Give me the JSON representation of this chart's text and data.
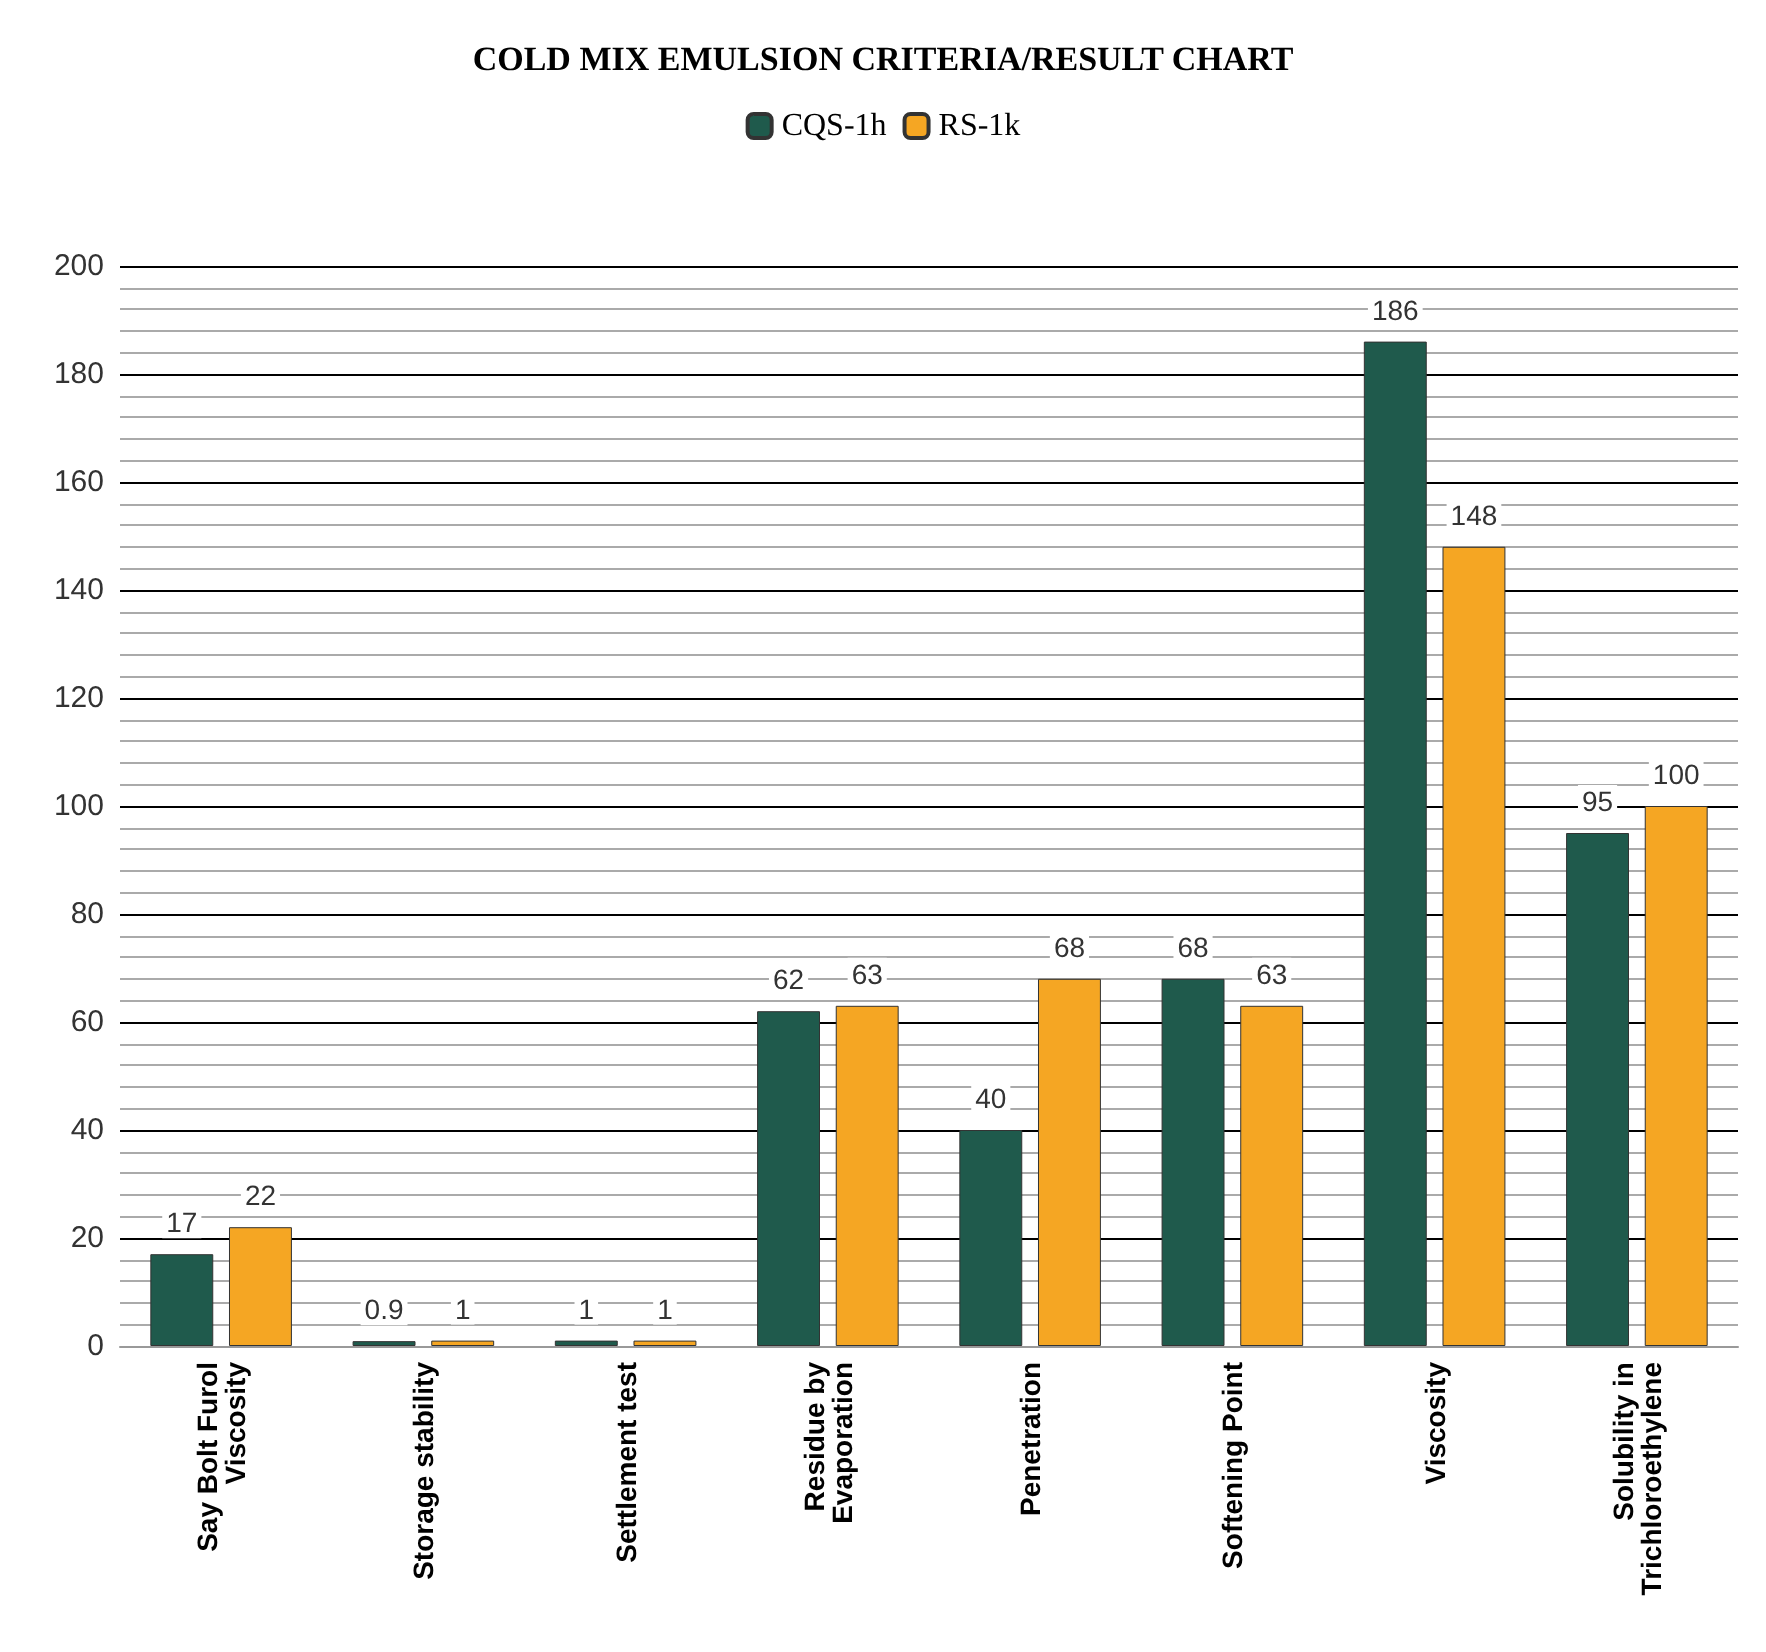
{
  "chart_data": {
    "type": "bar",
    "title": "COLD MIX EMULSION CRITERIA/RESULT CHART",
    "categories": [
      "Say Bolt Furol Viscosity",
      "Storage stability",
      "Settlement test",
      "Residue by Evaporation",
      "Penetration",
      "Softening Point",
      "Viscosity",
      "Solubility in Trichloroethylene"
    ],
    "series": [
      {
        "name": "CQS-1h",
        "color": "#1f5a4c",
        "values": [
          17,
          0.9,
          1,
          62,
          40,
          68,
          186,
          95
        ]
      },
      {
        "name": "RS-1k",
        "color": "#f5a623",
        "values": [
          22,
          1,
          1,
          63,
          68,
          63,
          148,
          100
        ]
      }
    ],
    "ylim": [
      0,
      200
    ],
    "yticks": [
      0,
      20,
      40,
      60,
      80,
      100,
      120,
      140,
      160,
      180,
      200
    ],
    "grid": "y",
    "legend": "top",
    "data_labels": true
  }
}
